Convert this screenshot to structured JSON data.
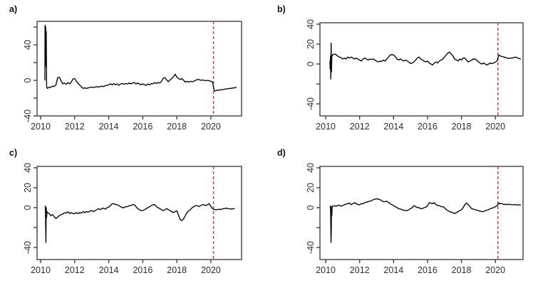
{
  "figure": {
    "background": "#ffffff",
    "axis_color": "#343434",
    "text_color": "#2e2e2e"
  },
  "chart_data": [
    {
      "id": "a",
      "panel_label": "a)",
      "type": "line",
      "line_color": "#0a0a0a",
      "x_ticks": [
        2010,
        2012,
        2014,
        2016,
        2018,
        2020
      ],
      "x_tick_labels": [
        "2010",
        "2012",
        "2014",
        "2016",
        "2018",
        "2020"
      ],
      "y_ticks": [
        {
          "value": 60,
          "label": ""
        },
        {
          "value": 40,
          "label": "40"
        },
        {
          "value": 20,
          "label": ""
        },
        {
          "value": 0,
          "label": "0"
        },
        {
          "value": -20,
          "label": ""
        },
        {
          "value": -40,
          "label": "-40"
        }
      ],
      "xlim": [
        2009.79,
        2021.8
      ],
      "ylim": [
        -40,
        66.4
      ],
      "vline": {
        "x": 2020.15,
        "color": "#cf4038",
        "style": "dashed"
      },
      "series": {
        "spike": [
          [
            2010.25,
            0
          ],
          [
            2010.26,
            62
          ],
          [
            2010.28,
            18
          ],
          [
            2010.3,
            60
          ],
          [
            2010.32,
            15
          ],
          [
            2010.33,
            55
          ],
          [
            2010.35,
            -6
          ],
          [
            2010.37,
            -8
          ]
        ],
        "x0": 2010.4,
        "dx": 0.1,
        "values": [
          -9,
          -7.5,
          -8,
          -6.5,
          -7,
          -5,
          3,
          3.5,
          -0.5,
          -4,
          -3,
          -4.5,
          -2.5,
          -4,
          -2,
          1.5,
          2,
          -1,
          -3.5,
          -5.5,
          -7.5,
          -9,
          -8.5,
          -9,
          -8.5,
          -8,
          -7.5,
          -8,
          -7.5,
          -7,
          -7.5,
          -7,
          -6.5,
          -7,
          -6,
          -5.5,
          -5,
          -4,
          -5,
          -3.5,
          -5,
          -4,
          -5.5,
          -4,
          -3.5,
          -4.5,
          -3.5,
          -4,
          -3,
          -4,
          -3,
          -2.5,
          -4,
          -3,
          -4,
          -5,
          -4,
          -5,
          -5.5,
          -4,
          -5,
          -3.5,
          -4,
          -2.5,
          -3.5,
          -2.5,
          -3,
          -1,
          2.5,
          3,
          0.5,
          -1.5,
          0.5,
          2,
          4,
          7,
          3.5,
          2,
          1,
          2,
          0,
          -2,
          -1,
          -2,
          -1,
          -1.5,
          -1,
          0,
          1,
          1,
          0,
          0.5,
          0,
          -0.5,
          0,
          -0.5,
          -1,
          -2,
          -12,
          -11.5,
          -11,
          -11,
          -10.5,
          -10.5,
          -10,
          -9.5,
          -9.5,
          -9,
          -9,
          -8.5,
          -8.5,
          -7.5
        ]
      }
    },
    {
      "id": "b",
      "panel_label": "b)",
      "type": "line",
      "line_color": "#0a0a0a",
      "x_ticks": [
        2010,
        2012,
        2014,
        2016,
        2018,
        2020
      ],
      "x_tick_labels": [
        "2010",
        "2012",
        "2014",
        "2016",
        "2018",
        "2020"
      ],
      "y_ticks": [
        {
          "value": 40,
          "label": "40"
        },
        {
          "value": 20,
          "label": "20"
        },
        {
          "value": 0,
          "label": "0"
        },
        {
          "value": -20,
          "label": ""
        },
        {
          "value": -40,
          "label": "-40"
        }
      ],
      "xlim": [
        2009.66,
        2021.63
      ],
      "ylim": [
        -52.1,
        41.4
      ],
      "vline": {
        "x": 2020.15,
        "color": "#cf4038",
        "style": "dashed"
      },
      "series": {
        "spike": [
          [
            2010.25,
            3
          ],
          [
            2010.26,
            -5
          ],
          [
            2010.28,
            8
          ],
          [
            2010.3,
            -15
          ],
          [
            2010.32,
            21
          ],
          [
            2010.34,
            -8
          ],
          [
            2010.36,
            9
          ],
          [
            2010.38,
            8
          ]
        ],
        "x0": 2010.4,
        "dx": 0.1,
        "values": [
          9,
          10,
          9.5,
          8,
          7,
          6.5,
          5,
          6,
          5,
          7,
          6,
          7,
          6,
          5,
          6,
          5,
          4,
          3,
          5,
          6,
          5,
          4,
          5,
          4.5,
          5,
          4,
          3,
          2,
          3,
          2.5,
          4,
          3,
          5,
          7,
          9,
          9.5,
          9,
          7.5,
          5,
          4,
          5,
          4,
          3,
          4,
          3,
          2,
          0.5,
          1,
          2,
          4,
          6,
          7,
          5,
          4,
          3,
          2,
          3,
          1,
          0,
          -1,
          1,
          2,
          1,
          3,
          4,
          5,
          7,
          9,
          11,
          12,
          10,
          8,
          5,
          4,
          3,
          5,
          4,
          6,
          6,
          4,
          2,
          3,
          4,
          5,
          5,
          4,
          2,
          1,
          0,
          1,
          0,
          -1,
          0,
          1,
          0.5,
          1,
          2,
          3,
          9,
          8,
          7.5,
          7,
          6.5,
          6,
          5.5,
          6,
          6,
          6.5,
          7,
          6,
          5.5,
          5
        ]
      }
    },
    {
      "id": "c",
      "panel_label": "c)",
      "type": "line",
      "line_color": "#0a0a0a",
      "x_ticks": [
        2010,
        2012,
        2014,
        2016,
        2018,
        2020
      ],
      "x_tick_labels": [
        "2010",
        "2012",
        "2014",
        "2016",
        "2018",
        "2020"
      ],
      "y_ticks": [
        {
          "value": 40,
          "label": "40"
        },
        {
          "value": 20,
          "label": "20"
        },
        {
          "value": 0,
          "label": "0"
        },
        {
          "value": -20,
          "label": ""
        },
        {
          "value": -40,
          "label": "-40"
        }
      ],
      "xlim": [
        2009.79,
        2021.8
      ],
      "ylim": [
        -52.1,
        41.4
      ],
      "vline": {
        "x": 2020.15,
        "color": "#cf4038",
        "style": "dashed"
      },
      "series": {
        "spike": [
          [
            2010.27,
            2
          ],
          [
            2010.29,
            -8
          ],
          [
            2010.31,
            -35
          ],
          [
            2010.33,
            0
          ],
          [
            2010.35,
            -10
          ],
          [
            2010.37,
            -4
          ]
        ],
        "x0": 2010.4,
        "dx": 0.1,
        "values": [
          -5,
          -6,
          -8,
          -7,
          -9,
          -11,
          -9.5,
          -8,
          -7,
          -6.5,
          -5,
          -5.5,
          -4,
          -6,
          -5,
          -6,
          -6,
          -5,
          -6,
          -5,
          -5.5,
          -4,
          -5,
          -4,
          -4.5,
          -3.5,
          -3,
          -4,
          -3,
          -2,
          -1,
          -2,
          -1,
          -0.5,
          -1.5,
          0,
          0.5,
          2,
          4,
          4,
          3,
          3,
          2,
          1,
          0,
          0,
          1,
          1,
          2,
          2,
          3,
          3,
          1,
          -1,
          -2,
          -3,
          -3,
          -2,
          -1,
          0,
          1,
          2,
          3,
          3,
          1,
          0,
          -1,
          -2,
          -3,
          -2,
          -1,
          -2,
          -3,
          -4,
          -5,
          -4,
          -3,
          -8,
          -12,
          -13,
          -11,
          -8,
          -5,
          -3,
          -2,
          0,
          1,
          2,
          2,
          1,
          2,
          3,
          3,
          2,
          3,
          4,
          1,
          -1,
          -2,
          -2,
          -2,
          -1.5,
          -2,
          -1,
          -1,
          -0.5,
          -1,
          -1,
          -1.5,
          -1,
          -1
        ]
      }
    },
    {
      "id": "d",
      "panel_label": "d)",
      "type": "line",
      "line_color": "#0a0a0a",
      "x_ticks": [
        2010,
        2012,
        2014,
        2016,
        2018,
        2020
      ],
      "x_tick_labels": [
        "2010",
        "2012",
        "2014",
        "2016",
        "2018",
        "2020"
      ],
      "y_ticks": [
        {
          "value": 40,
          "label": "40"
        },
        {
          "value": 20,
          "label": "20"
        },
        {
          "value": 0,
          "label": "0"
        },
        {
          "value": -20,
          "label": ""
        },
        {
          "value": -40,
          "label": "-40"
        }
      ],
      "xlim": [
        2009.66,
        2021.63
      ],
      "ylim": [
        -52.1,
        41.4
      ],
      "vline": {
        "x": 2020.15,
        "color": "#cf4038",
        "style": "dashed"
      },
      "series": {
        "spike": [
          [
            2010.27,
            2
          ],
          [
            2010.29,
            -4
          ],
          [
            2010.31,
            -35
          ],
          [
            2010.33,
            -20
          ],
          [
            2010.34,
            1
          ],
          [
            2010.36,
            -8
          ],
          [
            2010.38,
            1.5
          ]
        ],
        "x0": 2010.4,
        "dx": 0.1,
        "values": [
          1,
          2,
          1.5,
          2,
          2.5,
          1.5,
          2,
          3,
          3.5,
          4,
          4.5,
          3,
          4,
          5,
          4,
          3,
          3,
          4,
          4,
          5,
          5.5,
          6,
          6.5,
          7,
          8,
          8.5,
          9,
          8.5,
          8,
          7,
          6,
          6,
          6.5,
          5,
          4,
          3,
          2,
          1,
          0,
          -1,
          -1.5,
          -2,
          -2.5,
          -3,
          -3,
          -2,
          -1,
          0,
          2,
          1,
          0,
          0,
          -1,
          -1,
          0,
          0.5,
          2,
          5,
          4.5,
          4,
          5,
          3,
          2,
          2,
          1,
          1,
          0,
          -2,
          -3,
          -4,
          -4.5,
          -5,
          -6,
          -5,
          -4,
          -3,
          -2,
          0,
          3,
          4.5,
          3,
          1,
          -1,
          -1.5,
          -2,
          -2.5,
          -3,
          -3.5,
          -4,
          -4,
          -3,
          -2.5,
          -2,
          -1,
          -0.5,
          0,
          1,
          2,
          4.5,
          4,
          4,
          3,
          3.5,
          3,
          3.5,
          3,
          3,
          3,
          3,
          2.5,
          3,
          2.5
        ]
      }
    }
  ]
}
